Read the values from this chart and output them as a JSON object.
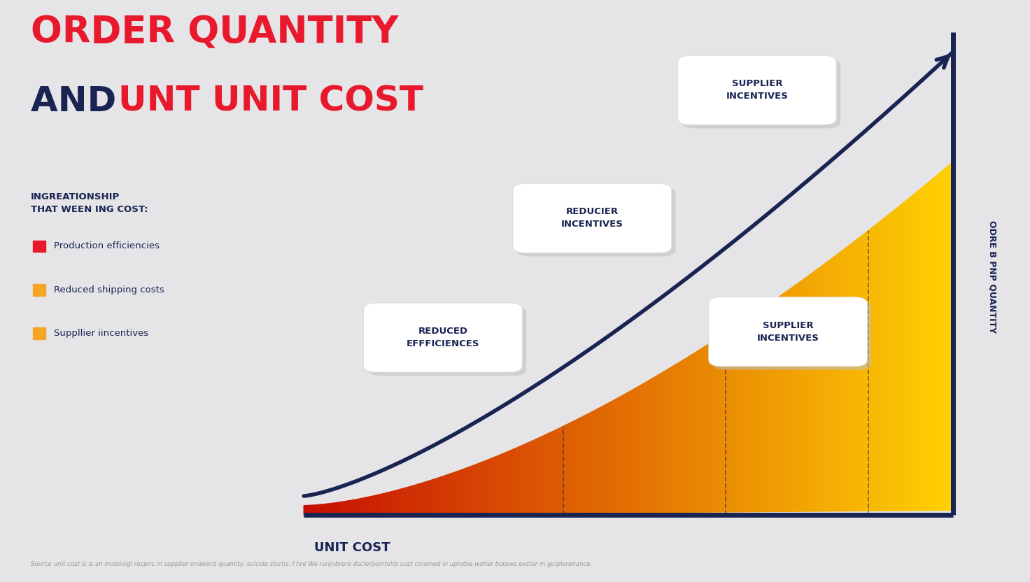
{
  "title_line1": "ORDER QUANTITY",
  "title_line2_part1": "AND ",
  "title_line2_part2": "UNT UNIT COST",
  "title_color_red": "#E8192C",
  "title_color_navy": "#1A2453",
  "bg_color": "#E5E5E8",
  "axis_color": "#1A2453",
  "legend_header": "INGREATIONSHIP\nTHAT WEEN ING COST:",
  "legend_items": [
    "Production efficiencies",
    "Reduced shipping costs",
    "Suppllier iincentives"
  ],
  "legend_bullet_colors": [
    "#E8192C",
    "#F5A623",
    "#F5A623"
  ],
  "xlabel": "UNIT COST",
  "ylabel": "ODRE B PNP QUANTITY",
  "callout1_text": "REDUCED\nEFFFICIENCES",
  "callout2_text": "REDUCIER\nINCENTIVES",
  "callout3_text": "SUPPLIER\nINCENTIVES",
  "callout4_text": "SUPPLIER\nINCENTIVES",
  "source_text": "Source unit cost is is an inotoloigl rocpirs in supplier ondword quantity, sulcole stortis. I hre We ranjnbrere dsclerpointolrp sust cononed in uplotoe wolter botews oxster m gulplorenance.",
  "arrow_color": "#1A2453"
}
